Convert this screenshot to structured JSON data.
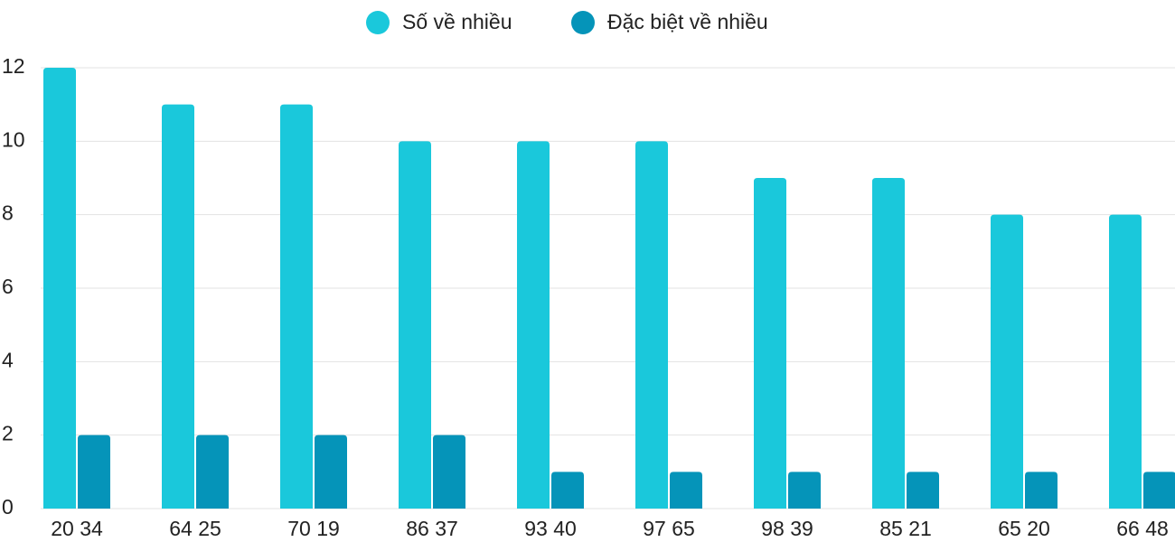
{
  "chart_data": {
    "type": "bar",
    "categories": [
      "20 34",
      "64 25",
      "70 19",
      "86 37",
      "93 40",
      "97 65",
      "98 39",
      "85 21",
      "65 20",
      "66 48"
    ],
    "series": [
      {
        "name": "Số về nhiều",
        "color": "#1ac8db",
        "values": [
          12,
          11,
          11,
          10,
          10,
          10,
          9,
          9,
          8,
          8
        ]
      },
      {
        "name": "Đặc biệt về nhiều",
        "color": "#0594b9",
        "values": [
          2,
          2,
          2,
          2,
          1,
          1,
          1,
          1,
          1,
          1
        ]
      }
    ],
    "ylim": [
      0,
      12
    ],
    "yticks": [
      0,
      2,
      4,
      6,
      8,
      10,
      12
    ],
    "grid": true,
    "legend": "top"
  }
}
